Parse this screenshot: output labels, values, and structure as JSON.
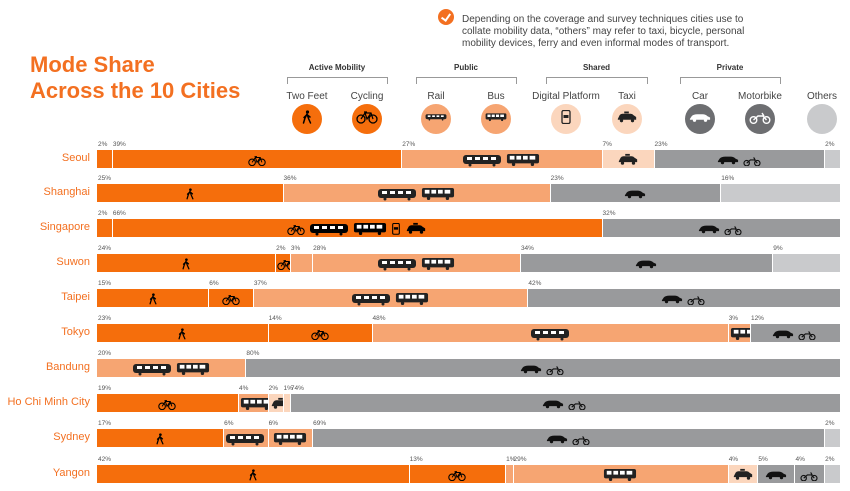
{
  "title_line1": "Mode Share",
  "title_line2": "Across the 10 Cities",
  "note": "Depending on the coverage and survey techniques cities use to collate mobility data, “others” may refer to taxi, bicycle, personal mobility devices, ferry and even informal modes of transport.",
  "colors": {
    "brand": "#f37021",
    "active": "#f56e0c",
    "public": "#f6a572",
    "shared": "#fbd6bd",
    "private": "#999a9c",
    "others": "#c9cacc",
    "label": "#f37021"
  },
  "groups": [
    {
      "name": "Active Mobility",
      "modes": [
        "Two Feet",
        "Cycling"
      ]
    },
    {
      "name": "Public",
      "modes": [
        "Rail",
        "Bus"
      ]
    },
    {
      "name": "Shared",
      "modes": [
        "Digital Platform",
        "Taxi"
      ]
    },
    {
      "name": "Private",
      "modes": [
        "Car",
        "Motorbike"
      ]
    }
  ],
  "modes": [
    {
      "key": "walk",
      "label": "Two Feet",
      "color": "#f56e0c",
      "icon": "walking-person-icon"
    },
    {
      "key": "cycle",
      "label": "Cycling",
      "color": "#f56e0c",
      "icon": "bicycle-icon"
    },
    {
      "key": "rail",
      "label": "Rail",
      "color": "#f6a572",
      "icon": "train-icon"
    },
    {
      "key": "bus",
      "label": "Bus",
      "color": "#f6a572",
      "icon": "bus-icon"
    },
    {
      "key": "digital",
      "label": "Digital Platform",
      "color": "#fbd6bd",
      "icon": "phone-car-icon"
    },
    {
      "key": "taxi",
      "label": "Taxi",
      "color": "#fbd6bd",
      "icon": "taxi-icon"
    },
    {
      "key": "car",
      "label": "Car",
      "color": "#6d6e71",
      "icon": "car-icon"
    },
    {
      "key": "motorbike",
      "label": "Motorbike",
      "color": "#6d6e71",
      "icon": "motorbike-icon"
    },
    {
      "key": "others",
      "label": "Others",
      "color": "#c9cacc",
      "icon": ""
    }
  ],
  "chart_data": {
    "type": "bar",
    "orientation": "horizontal-stacked-100",
    "rows": [
      {
        "city": "Seoul",
        "segments": [
          {
            "mode": "walk",
            "value": 2,
            "label": "2%",
            "icons": []
          },
          {
            "mode": "cycle",
            "value": 39,
            "label": "39%",
            "icons": [
              "cycle"
            ]
          },
          {
            "mode": "public",
            "value": 27,
            "label": "27%",
            "icons": [
              "rail",
              "bus"
            ]
          },
          {
            "mode": "shared",
            "value": 7,
            "label": "7%",
            "icons": [
              "taxi"
            ]
          },
          {
            "mode": "private",
            "value": 23,
            "label": "23%",
            "icons": [
              "car",
              "motorbike"
            ]
          },
          {
            "mode": "others",
            "value": 2,
            "label": "2%",
            "icons": []
          }
        ]
      },
      {
        "city": "Shanghai",
        "segments": [
          {
            "mode": "active",
            "value": 25,
            "label": "25%",
            "icons": [
              "walk"
            ]
          },
          {
            "mode": "public",
            "value": 36,
            "label": "36%",
            "icons": [
              "rail",
              "bus"
            ]
          },
          {
            "mode": "private",
            "value": 23,
            "label": "23%",
            "icons": [
              "car"
            ]
          },
          {
            "mode": "others",
            "value": 16,
            "label": "16%",
            "icons": []
          }
        ]
      },
      {
        "city": "Singapore",
        "segments": [
          {
            "mode": "walk",
            "value": 2,
            "label": "2%",
            "icons": []
          },
          {
            "mode": "cycle",
            "value": 66,
            "label": "66%",
            "icons": [
              "cycle",
              "rail",
              "bus",
              "digital",
              "taxi"
            ]
          },
          {
            "mode": "private",
            "value": 32,
            "label": "32%",
            "icons": [
              "car",
              "motorbike"
            ]
          }
        ]
      },
      {
        "city": "Suwon",
        "segments": [
          {
            "mode": "active",
            "value": 24,
            "label": "24%",
            "icons": [
              "walk"
            ]
          },
          {
            "mode": "cycle",
            "value": 2,
            "label": "2%",
            "icons": [
              "cycle"
            ]
          },
          {
            "mode": "rail",
            "value": 3,
            "label": "3%",
            "icons": []
          },
          {
            "mode": "public",
            "value": 28,
            "label": "28%",
            "icons": [
              "rail",
              "bus"
            ]
          },
          {
            "mode": "private",
            "value": 34,
            "label": "34%",
            "icons": [
              "car"
            ]
          },
          {
            "mode": "others",
            "value": 9,
            "label": "9%",
            "icons": []
          }
        ]
      },
      {
        "city": "Taipei",
        "segments": [
          {
            "mode": "walk",
            "value": 15,
            "label": "15%",
            "icons": [
              "walk"
            ]
          },
          {
            "mode": "cycle",
            "value": 6,
            "label": "6%",
            "icons": [
              "cycle"
            ]
          },
          {
            "mode": "public",
            "value": 37,
            "label": "37%",
            "icons": [
              "rail",
              "bus"
            ]
          },
          {
            "mode": "private",
            "value": 42,
            "label": "42%",
            "icons": [
              "car",
              "motorbike"
            ]
          }
        ]
      },
      {
        "city": "Tokyo",
        "segments": [
          {
            "mode": "walk",
            "value": 23,
            "label": "23%",
            "icons": [
              "walk"
            ]
          },
          {
            "mode": "cycle",
            "value": 14,
            "label": "14%",
            "icons": [
              "cycle"
            ]
          },
          {
            "mode": "public",
            "value": 48,
            "label": "48%",
            "icons": [
              "rail"
            ]
          },
          {
            "mode": "bus",
            "value": 3,
            "label": "3%",
            "icons": [
              "bus"
            ]
          },
          {
            "mode": "private",
            "value": 12,
            "label": "12%",
            "icons": [
              "car",
              "motorbike"
            ]
          }
        ]
      },
      {
        "city": "Bandung",
        "segments": [
          {
            "mode": "public",
            "value": 20,
            "label": "20%",
            "icons": [
              "rail",
              "bus"
            ]
          },
          {
            "mode": "private",
            "value": 80,
            "label": "80%",
            "icons": [
              "car",
              "motorbike"
            ]
          }
        ]
      },
      {
        "city": "Ho Chi Minh City",
        "segments": [
          {
            "mode": "cycle",
            "value": 19,
            "label": "19%",
            "icons": [
              "cycle"
            ]
          },
          {
            "mode": "bus",
            "value": 4,
            "label": "4%",
            "icons": [
              "bus"
            ]
          },
          {
            "mode": "taxi",
            "value": 2,
            "label": "2%",
            "icons": [
              "taxi"
            ]
          },
          {
            "mode": "digital",
            "value": 1,
            "label": "1%",
            "icons": []
          },
          {
            "mode": "private",
            "value": 74,
            "label": "74%",
            "icons": [
              "car",
              "motorbike"
            ]
          }
        ]
      },
      {
        "city": "Sydney",
        "segments": [
          {
            "mode": "walk",
            "value": 17,
            "label": "17%",
            "icons": [
              "walk"
            ]
          },
          {
            "mode": "rail",
            "value": 6,
            "label": "6%",
            "icons": [
              "rail"
            ]
          },
          {
            "mode": "bus",
            "value": 6,
            "label": "6%",
            "icons": [
              "bus"
            ]
          },
          {
            "mode": "private",
            "value": 69,
            "label": "69%",
            "icons": [
              "car",
              "motorbike"
            ]
          },
          {
            "mode": "others",
            "value": 2,
            "label": "2%",
            "icons": []
          }
        ]
      },
      {
        "city": "Yangon",
        "segments": [
          {
            "mode": "walk",
            "value": 42,
            "label": "42%",
            "icons": [
              "walk"
            ]
          },
          {
            "mode": "cycle",
            "value": 13,
            "label": "13%",
            "icons": [
              "cycle"
            ]
          },
          {
            "mode": "rail",
            "value": 1,
            "label": "1%",
            "icons": []
          },
          {
            "mode": "bus",
            "value": 29,
            "label": "29%",
            "icons": [
              "bus"
            ]
          },
          {
            "mode": "taxi",
            "value": 4,
            "label": "4%",
            "icons": [
              "taxi"
            ]
          },
          {
            "mode": "car",
            "value": 5,
            "label": "5%",
            "icons": [
              "car"
            ]
          },
          {
            "mode": "motorbike",
            "value": 4,
            "label": "4%",
            "icons": [
              "motorbike"
            ]
          },
          {
            "mode": "others",
            "value": 2,
            "label": "2%",
            "icons": []
          }
        ]
      }
    ],
    "xlim": [
      0,
      100
    ],
    "legend": "top"
  }
}
